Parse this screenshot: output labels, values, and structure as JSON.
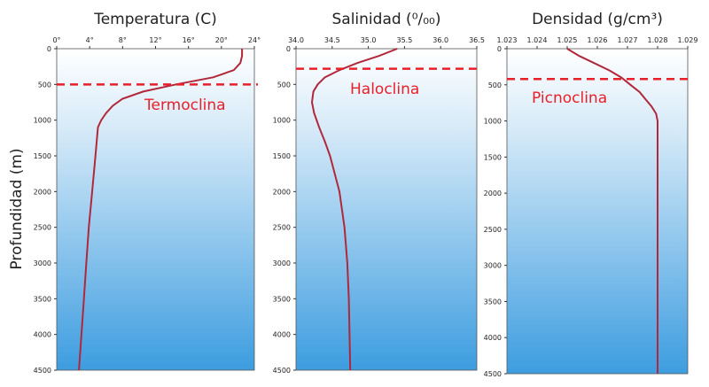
{
  "chart_data": [
    {
      "type": "line",
      "title": "Temperatura (C)",
      "ylabel": "Profundidad (m)",
      "color": "#b0283a",
      "x": [
        22.5,
        22.5,
        22.3,
        21.5,
        19,
        14.5,
        10.5,
        8,
        6.8,
        6,
        5.4,
        5,
        4.7,
        4.3,
        3.9,
        3.6,
        3.3,
        3.0,
        2.7
      ],
      "y": [
        0,
        100,
        200,
        300,
        400,
        500,
        600,
        700,
        800,
        900,
        1000,
        1100,
        1500,
        2000,
        2500,
        3000,
        3500,
        4000,
        4500
      ],
      "xlim": [
        0,
        24
      ],
      "xticks": [
        {
          "value": 0,
          "label": "0°"
        },
        {
          "value": 4,
          "label": "4°"
        },
        {
          "value": 8,
          "label": "8°"
        },
        {
          "value": 12,
          "label": "12°"
        },
        {
          "value": 16,
          "label": "16°"
        },
        {
          "value": 20,
          "label": "20°"
        },
        {
          "value": 24,
          "label": "24°"
        }
      ],
      "ylim": [
        0,
        4500
      ],
      "yticks": [
        0,
        500,
        1000,
        1500,
        2000,
        2500,
        3000,
        3500,
        4000,
        4500
      ],
      "y_reversed": true,
      "threshold": {
        "value": 500,
        "label": "Termoclina",
        "color": "#e8202a"
      }
    },
    {
      "type": "line",
      "title": "Salinidad (⁰/₀₀)",
      "color": "#b0283a",
      "x": [
        35.4,
        35.15,
        34.85,
        34.6,
        34.4,
        34.3,
        34.24,
        34.22,
        34.25,
        34.32,
        34.4,
        34.47,
        34.6,
        34.67,
        34.71,
        34.73,
        34.74,
        34.75
      ],
      "y": [
        0,
        100,
        200,
        300,
        400,
        500,
        600,
        750,
        900,
        1100,
        1300,
        1500,
        2000,
        2500,
        3000,
        3500,
        4000,
        4500
      ],
      "xlim": [
        34,
        36.5
      ],
      "xticks": [
        {
          "value": 34,
          "label": "34.0"
        },
        34.5,
        {
          "value": 35,
          "label": "35.0"
        },
        35.5,
        {
          "value": 36,
          "label": "36.0"
        },
        36.5
      ],
      "ylim": [
        0,
        4500
      ],
      "yticks": [
        0,
        500,
        1000,
        1500,
        2000,
        2500,
        3000,
        3500,
        4000,
        4500
      ],
      "y_reversed": true,
      "threshold": {
        "value": 280,
        "label": "Haloclina",
        "color": "#e8202a"
      }
    },
    {
      "type": "line",
      "title": "Densidad (g/cm³)",
      "color": "#b0283a",
      "x": [
        1.025,
        1.0254,
        1.0259,
        1.0264,
        1.0268,
        1.0271,
        1.0274,
        1.0276,
        1.0278,
        1.02795,
        1.028,
        1.028
      ],
      "y": [
        0,
        100,
        200,
        300,
        400,
        500,
        600,
        700,
        800,
        900,
        1000,
        4500
      ],
      "xlim": [
        1.023,
        1.029
      ],
      "xticks": [
        1.023,
        1.024,
        1.025,
        1.026,
        1.027,
        1.028,
        1.029
      ],
      "ylim": [
        0,
        4500
      ],
      "yticks": [
        0,
        500,
        1000,
        1500,
        2000,
        2500,
        3000,
        3500,
        4000,
        4500
      ],
      "y_reversed": true,
      "threshold": {
        "value": 420,
        "label": "Picnoclina",
        "color": "#e8202a"
      }
    }
  ]
}
